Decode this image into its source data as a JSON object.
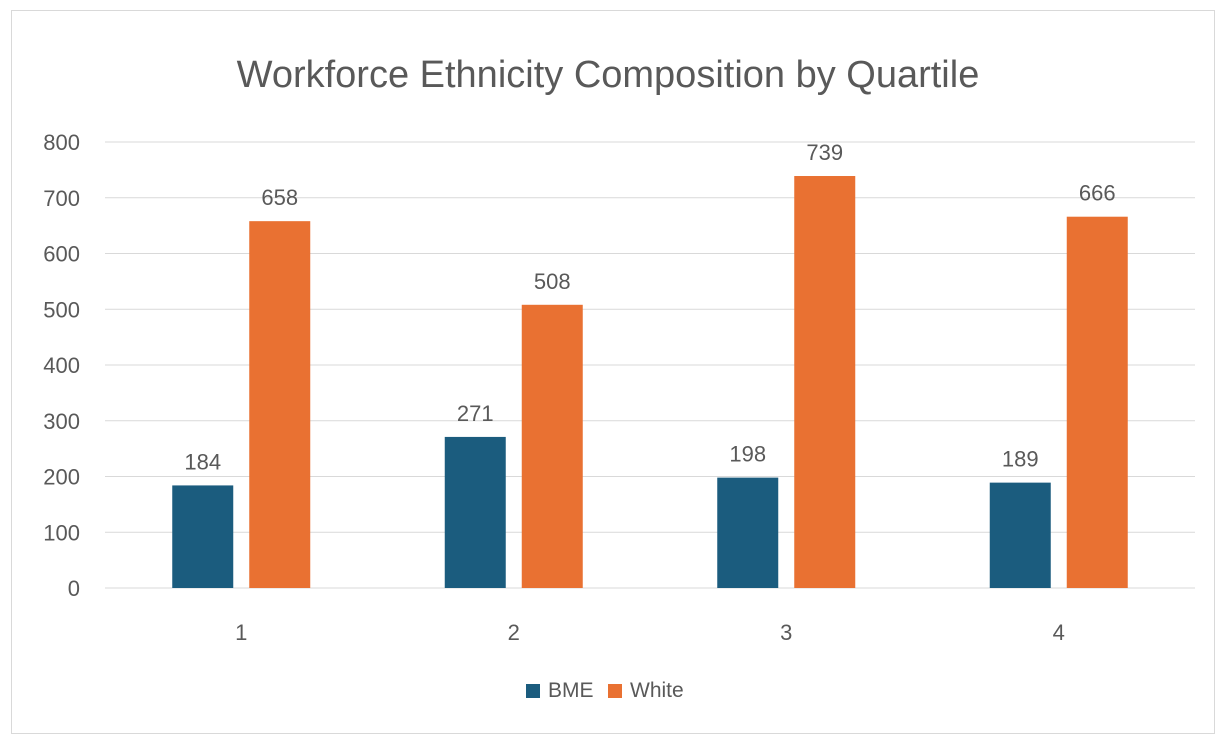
{
  "chart_data": {
    "type": "bar",
    "title": "Workforce Ethnicity Composition by Quartile",
    "xlabel": "",
    "ylabel": "",
    "categories": [
      "1",
      "2",
      "3",
      "4"
    ],
    "series": [
      {
        "name": "BME",
        "values": [
          184,
          271,
          198,
          189
        ],
        "color": "#1b5c7e"
      },
      {
        "name": "White",
        "values": [
          658,
          508,
          739,
          666
        ],
        "color": "#e97132"
      }
    ],
    "ylim": [
      0,
      800
    ],
    "yticks": [
      "0",
      "100",
      "200",
      "300",
      "400",
      "500",
      "600",
      "700",
      "800"
    ],
    "grid": true,
    "legend_position": "bottom",
    "data_labels": true
  },
  "colors": {
    "gridline": "#d9d9d9",
    "axis_text": "#595959",
    "title_text": "#595959"
  }
}
